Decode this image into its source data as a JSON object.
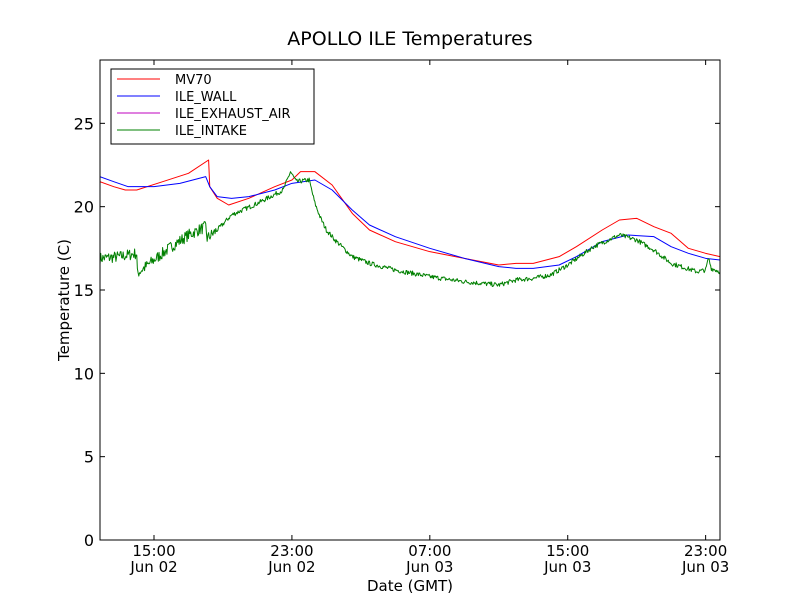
{
  "chart_data": {
    "type": "line",
    "title": "APOLLO ILE Temperatures",
    "xlabel": "Date (GMT)",
    "ylabel": "Temperature (C)",
    "ylim": [
      0,
      28.8
    ],
    "xlim": [
      "2014-06-02T11:52",
      "2014-06-03T23:50"
    ],
    "yticks": [
      {
        "value": 0,
        "label": "0"
      },
      {
        "value": 5,
        "label": "5"
      },
      {
        "value": 10,
        "label": "10"
      },
      {
        "value": 15,
        "label": "15"
      },
      {
        "value": 20,
        "label": "20"
      },
      {
        "value": 25,
        "label": "25"
      }
    ],
    "xticks": [
      {
        "value": "2014-06-02T15:00",
        "time": "15:00",
        "date": "Jun 02"
      },
      {
        "value": "2014-06-02T23:00",
        "time": "23:00",
        "date": "Jun 02"
      },
      {
        "value": "2014-06-03T07:00",
        "time": "07:00",
        "date": "Jun 03"
      },
      {
        "value": "2014-06-03T15:00",
        "time": "15:00",
        "date": "Jun 03"
      },
      {
        "value": "2014-06-03T23:00",
        "time": "23:00",
        "date": "Jun 03"
      }
    ],
    "grid": false,
    "legend_position": "top-left",
    "series": [
      {
        "name": "MV70",
        "color": "#ff0000",
        "x": [
          "2014-06-02T11:52",
          "2014-06-02T12:40",
          "2014-06-02T13:20",
          "2014-06-02T14:00",
          "2014-06-02T15:30",
          "2014-06-02T17:00",
          "2014-06-02T18:10",
          "2014-06-02T18:14",
          "2014-06-02T18:40",
          "2014-06-02T19:20",
          "2014-06-02T20:30",
          "2014-06-02T22:00",
          "2014-06-02T23:00",
          "2014-06-02T23:30",
          "2014-06-03T00:20",
          "2014-06-03T01:20",
          "2014-06-03T02:30",
          "2014-06-03T03:30",
          "2014-06-03T05:00",
          "2014-06-03T07:00",
          "2014-06-03T09:00",
          "2014-06-03T11:00",
          "2014-06-03T12:00",
          "2014-06-03T13:00",
          "2014-06-03T14:30",
          "2014-06-03T15:30",
          "2014-06-03T17:00",
          "2014-06-03T18:00",
          "2014-06-03T19:00",
          "2014-06-03T20:00",
          "2014-06-03T21:00",
          "2014-06-03T22:00",
          "2014-06-03T23:00",
          "2014-06-03T23:50"
        ],
        "y": [
          21.5,
          21.2,
          21.0,
          21.0,
          21.5,
          22.0,
          22.8,
          21.2,
          20.5,
          20.1,
          20.5,
          21.2,
          21.6,
          22.1,
          22.1,
          21.3,
          19.6,
          18.6,
          17.9,
          17.3,
          16.9,
          16.5,
          16.6,
          16.6,
          17.0,
          17.6,
          18.6,
          19.2,
          19.3,
          18.8,
          18.4,
          17.5,
          17.2,
          17.0
        ]
      },
      {
        "name": "ILE_WALL",
        "color": "#0000ff",
        "x": [
          "2014-06-02T11:52",
          "2014-06-02T12:40",
          "2014-06-02T13:30",
          "2014-06-02T15:00",
          "2014-06-02T16:30",
          "2014-06-02T18:00",
          "2014-06-02T18:14",
          "2014-06-02T18:40",
          "2014-06-02T19:30",
          "2014-06-02T20:30",
          "2014-06-02T22:00",
          "2014-06-02T23:00",
          "2014-06-03T00:20",
          "2014-06-03T01:20",
          "2014-06-03T02:30",
          "2014-06-03T03:30",
          "2014-06-03T05:00",
          "2014-06-03T07:00",
          "2014-06-03T09:00",
          "2014-06-03T11:00",
          "2014-06-03T12:00",
          "2014-06-03T13:00",
          "2014-06-03T14:30",
          "2014-06-03T15:30",
          "2014-06-03T17:00",
          "2014-06-03T18:30",
          "2014-06-03T20:00",
          "2014-06-03T21:00",
          "2014-06-03T22:00",
          "2014-06-03T23:00",
          "2014-06-03T23:50"
        ],
        "y": [
          21.8,
          21.5,
          21.2,
          21.2,
          21.4,
          21.8,
          21.2,
          20.6,
          20.5,
          20.6,
          21.0,
          21.4,
          21.6,
          21.0,
          19.8,
          18.9,
          18.2,
          17.5,
          16.9,
          16.4,
          16.3,
          16.3,
          16.5,
          17.0,
          17.9,
          18.3,
          18.2,
          17.6,
          17.2,
          16.9,
          16.8
        ]
      },
      {
        "name": "ILE_EXHAUST_AIR",
        "color": "#bf00bf",
        "x": [],
        "y": []
      },
      {
        "name": "ILE_INTAKE",
        "color": "#008000",
        "noise": true,
        "x": [
          "2014-06-02T11:52",
          "2014-06-02T13:00",
          "2014-06-02T14:00",
          "2014-06-02T14:02",
          "2014-06-02T15:00",
          "2014-06-02T16:00",
          "2014-06-02T17:00",
          "2014-06-02T18:00",
          "2014-06-02T18:05",
          "2014-06-02T18:40",
          "2014-06-02T19:30",
          "2014-06-02T21:00",
          "2014-06-02T22:30",
          "2014-06-02T22:55",
          "2014-06-02T23:15",
          "2014-06-03T00:00",
          "2014-06-03T00:20",
          "2014-06-03T00:40",
          "2014-06-03T01:00",
          "2014-06-03T01:30",
          "2014-06-03T02:30",
          "2014-06-03T03:30",
          "2014-06-03T05:00",
          "2014-06-03T07:00",
          "2014-06-03T09:00",
          "2014-06-03T11:00",
          "2014-06-03T12:00",
          "2014-06-03T13:00",
          "2014-06-03T14:00",
          "2014-06-03T15:00",
          "2014-06-03T16:30",
          "2014-06-03T18:00",
          "2014-06-03T19:00",
          "2014-06-03T20:00",
          "2014-06-03T21:00",
          "2014-06-03T22:30",
          "2014-06-03T23:00",
          "2014-06-03T23:10",
          "2014-06-03T23:20",
          "2014-06-03T23:50"
        ],
        "y": [
          16.9,
          17.0,
          17.2,
          16.0,
          16.8,
          17.6,
          18.3,
          18.8,
          18.1,
          18.6,
          19.5,
          20.2,
          21.0,
          22.1,
          21.5,
          21.6,
          20.2,
          19.3,
          18.6,
          18.0,
          17.0,
          16.6,
          16.2,
          15.8,
          15.5,
          15.3,
          15.6,
          15.7,
          15.9,
          16.5,
          17.6,
          18.3,
          18.0,
          17.4,
          16.6,
          16.1,
          16.2,
          16.9,
          16.3,
          16.1
        ]
      }
    ]
  }
}
